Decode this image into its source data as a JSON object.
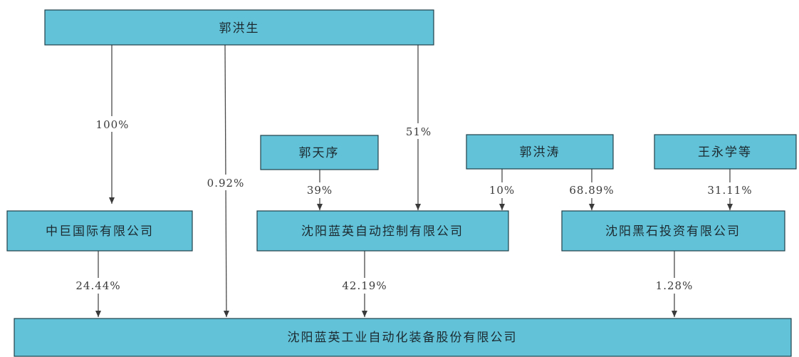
{
  "nodes": {
    "guo_hongsheng": "郭洪生",
    "guo_tianxu": "郭天序",
    "guo_hongtao": "郭洪涛",
    "wang_yongxue": "王永学等",
    "zhongju_intl": "中巨国际有限公司",
    "lanying_auto_control": "沈阳蓝英自动控制有限公司",
    "heishi_invest": "沈阳黑石投资有限公司",
    "lanying_industrial": "沈阳蓝英工业自动化装备股份有限公司"
  },
  "edges": {
    "hongsheng_to_zhongju": "100%",
    "hongsheng_to_industrial": "0.92%",
    "hongsheng_to_autocontrol": "51%",
    "tianxu_to_autocontrol": "39%",
    "hongtao_to_autocontrol": "10%",
    "hongtao_to_heishi": "68.89%",
    "wang_to_heishi": "31.11%",
    "zhongju_to_industrial": "24.44%",
    "autocontrol_to_industrial": "42.19%",
    "heishi_to_industrial": "1.28%"
  }
}
